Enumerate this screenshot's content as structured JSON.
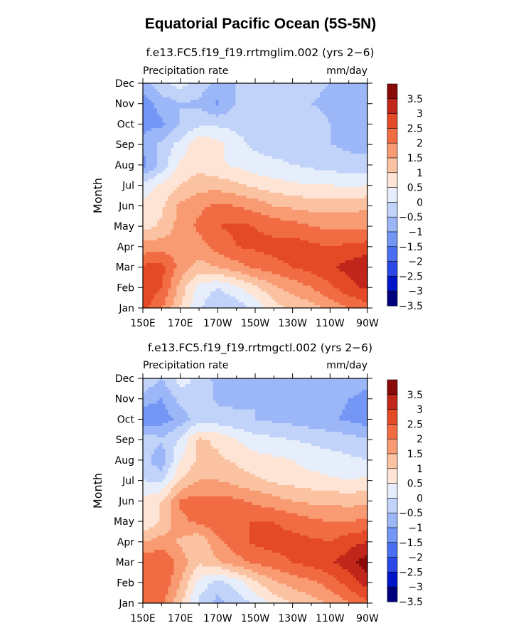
{
  "figure": {
    "title": "Equatorial Pacific Ocean (5S-5N)"
  },
  "colors": {
    "palette": [
      "#00007f",
      "#0015c8",
      "#2a47e6",
      "#4a6ff0",
      "#7496f4",
      "#9cb7f7",
      "#c1d3f9",
      "#e6eefc",
      "#fde4d4",
      "#fbc2a2",
      "#f89b72",
      "#f26c43",
      "#e44a26",
      "#c0271a",
      "#8a0a0a"
    ],
    "axes": "#000000"
  },
  "chart_data": [
    {
      "type": "contour",
      "panel_title": "f.e13.FC5.f19_f19.rrtmglim.002 (yrs 2−6)",
      "left_label": "Precipitation rate",
      "right_label": "mm/day",
      "xlabel": "",
      "ylabel": "Month",
      "x": [
        150,
        160,
        170,
        180,
        190,
        200,
        210,
        220,
        230,
        240,
        250,
        260,
        270
      ],
      "xlim": [
        150,
        270
      ],
      "x_tick_values": [
        150,
        170,
        190,
        210,
        230,
        250,
        270
      ],
      "x_tick_labels": [
        "150E",
        "170E",
        "170W",
        "150W",
        "130W",
        "110W",
        "90W"
      ],
      "y_tick_labels": [
        "Jan",
        "Feb",
        "Mar",
        "Apr",
        "May",
        "Jun",
        "Jul",
        "Aug",
        "Sep",
        "Oct",
        "Nov",
        "Dec"
      ],
      "colorbar_levels": [
        -3.5,
        -3,
        -2.5,
        -2,
        -1.5,
        -1,
        -0.5,
        0,
        0.5,
        1,
        1.5,
        2,
        2.5,
        3,
        3.5
      ],
      "colorbar_labels": [
        "3.5",
        "3",
        "2.5",
        "2",
        "1.5",
        "1",
        "0.5",
        "0",
        "−0.5",
        "−1",
        "−1.5",
        "−2",
        "−2.5",
        "−3",
        "−3.5"
      ],
      "values": [
        [
          2.2,
          1.6,
          0.5,
          -0.4,
          -1.0,
          -0.8,
          -0.4,
          0.3,
          0.6,
          0.8,
          1.2,
          1.5,
          1.8
        ],
        [
          2.3,
          2.0,
          0.8,
          -0.2,
          -0.5,
          -0.1,
          0.4,
          0.9,
          1.2,
          1.5,
          1.9,
          2.3,
          2.6
        ],
        [
          2.1,
          2.2,
          1.3,
          0.8,
          1.0,
          1.3,
          1.6,
          1.8,
          2.0,
          2.2,
          2.4,
          2.7,
          3.0
        ],
        [
          1.2,
          1.3,
          1.2,
          1.3,
          1.7,
          2.0,
          2.1,
          2.2,
          2.3,
          2.1,
          2.0,
          2.1,
          2.2
        ],
        [
          0.3,
          0.6,
          1.2,
          1.6,
          2.0,
          2.1,
          2.0,
          1.8,
          1.7,
          1.5,
          1.4,
          1.4,
          1.4
        ],
        [
          0.1,
          0.4,
          1.1,
          1.4,
          1.6,
          1.5,
          1.3,
          1.0,
          0.9,
          0.8,
          0.8,
          0.8,
          0.9
        ],
        [
          -0.3,
          0.1,
          0.5,
          0.8,
          0.8,
          0.6,
          0.4,
          0.2,
          0.1,
          0.0,
          0.0,
          -0.1,
          0.0
        ],
        [
          -1.7,
          -0.8,
          0.1,
          0.3,
          0.1,
          -0.1,
          -0.3,
          -0.4,
          -0.5,
          -0.6,
          -0.7,
          -0.8,
          -0.8
        ],
        [
          -1.3,
          -0.9,
          -0.3,
          0.4,
          0.2,
          -0.4,
          -0.6,
          -0.7,
          -0.7,
          -0.8,
          -1.0,
          -1.1,
          -1.2
        ],
        [
          -1.7,
          -1.6,
          -1.0,
          -0.6,
          -0.6,
          -0.6,
          -0.5,
          -0.5,
          -0.6,
          -0.8,
          -1.0,
          -1.3,
          -1.5
        ],
        [
          -1.8,
          -1.3,
          -1.0,
          -1.1,
          -1.6,
          -1.0,
          -0.7,
          -0.8,
          -0.9,
          -1.0,
          -1.1,
          -1.2,
          -1.3
        ],
        [
          -1.2,
          -0.6,
          -0.3,
          -0.7,
          -1.2,
          -1.0,
          -0.9,
          -0.8,
          -0.8,
          -0.9,
          -1.0,
          -1.1,
          -1.2
        ]
      ]
    },
    {
      "type": "contour",
      "panel_title": "f.e13.FC5.f19_f19.rrtmgctl.002 (yrs 2−6)",
      "left_label": "Precipitation rate",
      "right_label": "mm/day",
      "xlabel": "",
      "ylabel": "Month",
      "x": [
        150,
        160,
        170,
        180,
        190,
        200,
        210,
        220,
        230,
        240,
        250,
        260,
        270
      ],
      "xlim": [
        150,
        270
      ],
      "x_tick_values": [
        150,
        170,
        190,
        210,
        230,
        250,
        270
      ],
      "x_tick_labels": [
        "150E",
        "170E",
        "170W",
        "150W",
        "130W",
        "110W",
        "90W"
      ],
      "y_tick_labels": [
        "Jan",
        "Feb",
        "Mar",
        "Apr",
        "May",
        "Jun",
        "Jul",
        "Aug",
        "Sep",
        "Oct",
        "Nov",
        "Dec"
      ],
      "colorbar_levels": [
        -3.5,
        -3,
        -2.5,
        -2,
        -1.5,
        -1,
        -0.5,
        0,
        0.5,
        1,
        1.5,
        2,
        2.5,
        3,
        3.5
      ],
      "colorbar_labels": [
        "3.5",
        "3",
        "2.5",
        "2",
        "1.5",
        "1",
        "0.5",
        "0",
        "−0.5",
        "−1",
        "−1.5",
        "−2",
        "−2.5",
        "−3",
        "−3.5"
      ],
      "values": [
        [
          1.8,
          1.6,
          0.6,
          -0.6,
          -1.2,
          -0.8,
          -0.4,
          0.2,
          0.5,
          0.8,
          1.1,
          1.5,
          1.9
        ],
        [
          1.9,
          2.0,
          1.0,
          -0.2,
          -0.7,
          -0.3,
          0.4,
          0.9,
          1.2,
          1.4,
          1.7,
          2.2,
          2.7
        ],
        [
          1.9,
          2.0,
          1.3,
          0.6,
          0.9,
          1.3,
          1.6,
          1.8,
          2.0,
          2.2,
          2.4,
          2.8,
          3.3
        ],
        [
          1.0,
          1.2,
          0.9,
          0.6,
          1.4,
          1.8,
          2.1,
          2.2,
          2.2,
          2.1,
          2.0,
          2.3,
          2.5
        ],
        [
          0.0,
          0.6,
          1.4,
          1.6,
          1.9,
          2.0,
          2.0,
          2.0,
          1.8,
          1.6,
          1.5,
          1.5,
          1.6
        ],
        [
          0.1,
          0.5,
          1.6,
          1.7,
          1.7,
          1.6,
          1.4,
          1.2,
          1.0,
          0.9,
          0.9,
          0.8,
          0.9
        ],
        [
          -0.5,
          -0.6,
          0.5,
          1.0,
          1.0,
          0.8,
          0.6,
          0.4,
          0.3,
          0.2,
          0.1,
          0.0,
          0.1
        ],
        [
          -0.8,
          -1.4,
          0.0,
          0.6,
          0.6,
          0.4,
          0.2,
          0.1,
          0.0,
          -0.2,
          -0.3,
          -0.4,
          -0.5
        ],
        [
          -0.6,
          -0.9,
          -0.4,
          0.6,
          0.4,
          0.0,
          -0.3,
          -0.4,
          -0.5,
          -0.6,
          -0.7,
          -0.8,
          -0.9
        ],
        [
          -2.0,
          -1.8,
          -1.3,
          -0.7,
          -0.8,
          -0.9,
          -1.0,
          -1.1,
          -1.2,
          -1.3,
          -1.4,
          -1.6,
          -1.8
        ],
        [
          -1.2,
          -1.5,
          -0.8,
          -0.6,
          -1.1,
          -1.1,
          -1.0,
          -1.1,
          -1.2,
          -1.3,
          -1.3,
          -1.5,
          -1.6
        ],
        [
          -0.6,
          -1.0,
          -0.3,
          -0.6,
          -1.2,
          -1.1,
          -1.0,
          -1.0,
          -1.1,
          -1.2,
          -1.2,
          -1.3,
          -1.4
        ]
      ]
    }
  ]
}
